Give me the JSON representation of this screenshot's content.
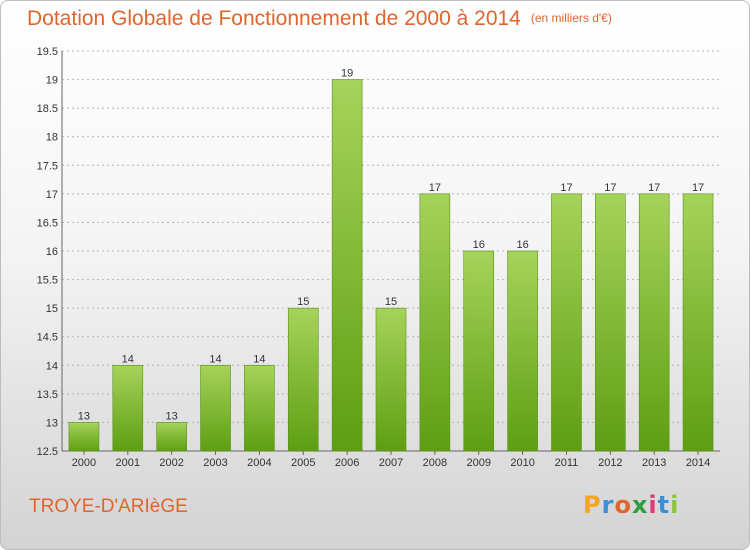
{
  "header": {
    "title": "Dotation Globale de Fonctionnement de 2000 à 2014",
    "unit": "(en milliers d'€)"
  },
  "footer": {
    "city": "TROYE-D'ARIèGE",
    "logo_letters": [
      "P",
      "r",
      "o",
      "x",
      "i",
      "t",
      "i"
    ],
    "logo_colors": [
      "#f5a623",
      "#3a8fd8",
      "#e0652d",
      "#2e9c3f",
      "#e03a7a",
      "#3a8fd8",
      "#8cc63f"
    ]
  },
  "colors": {
    "bar_top": "#a6d35a",
    "bar_bottom": "#5e9e12",
    "title": "#e0652d"
  },
  "chart_data": {
    "type": "bar",
    "title": "Dotation Globale de Fonctionnement de 2000 à 2014",
    "subtitle": "(en milliers d'€)",
    "xlabel": "",
    "ylabel": "",
    "categories": [
      "2000",
      "2001",
      "2002",
      "2003",
      "2004",
      "2005",
      "2006",
      "2007",
      "2008",
      "2009",
      "2010",
      "2011",
      "2012",
      "2013",
      "2014"
    ],
    "values": [
      13,
      14,
      13,
      14,
      14,
      15,
      19,
      15,
      17,
      16,
      16,
      17,
      17,
      17,
      17
    ],
    "data_labels": [
      "13",
      "14",
      "13",
      "14",
      "14",
      "15",
      "19",
      "15",
      "17",
      "16",
      "16",
      "17",
      "17",
      "17",
      "17"
    ],
    "ylim": [
      12.5,
      19.5
    ],
    "yticks": [
      "12.5",
      "13",
      "13.5",
      "14",
      "14.5",
      "15",
      "15.5",
      "16",
      "16.5",
      "17",
      "17.5",
      "18",
      "18.5",
      "19",
      "19.5"
    ],
    "grid": true,
    "legend": "none"
  }
}
